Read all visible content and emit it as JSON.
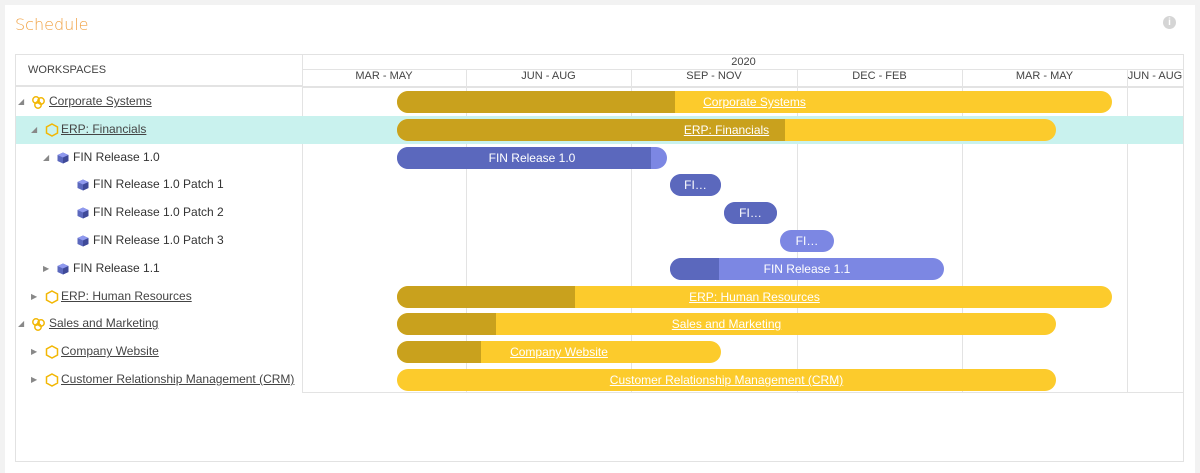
{
  "header": {
    "title": "Schedule"
  },
  "timeline": {
    "column_header": "WORKSPACES",
    "year": "2020",
    "periods": [
      "MAR - MAY",
      "JUN - AUG",
      "SEP - NOV",
      "DEC - FEB",
      "MAR - MAY",
      "JUN - AUG"
    ]
  },
  "rows": [
    {
      "name": "Corporate Systems",
      "bar_label": "Corporate Systems"
    },
    {
      "name": "ERP: Financials",
      "bar_label": "ERP: Financials"
    },
    {
      "name": "FIN Release 1.0",
      "bar_label": "FIN Release 1.0"
    },
    {
      "name": "FIN Release 1.0 Patch 1",
      "bar_label": "FI…"
    },
    {
      "name": "FIN Release 1.0 Patch 2",
      "bar_label": "FI…"
    },
    {
      "name": "FIN Release 1.0 Patch 3",
      "bar_label": "FI…"
    },
    {
      "name": "FIN Release 1.1",
      "bar_label": "FIN Release 1.1"
    },
    {
      "name": "ERP: Human Resources",
      "bar_label": "ERP: Human Resources"
    },
    {
      "name": "Sales and Marketing",
      "bar_label": "Sales and Marketing"
    },
    {
      "name": "Company Website",
      "bar_label": "Company Website"
    },
    {
      "name": "Customer Relationship Management (CRM)",
      "bar_label": "Customer Relationship Management (CRM)"
    }
  ]
}
